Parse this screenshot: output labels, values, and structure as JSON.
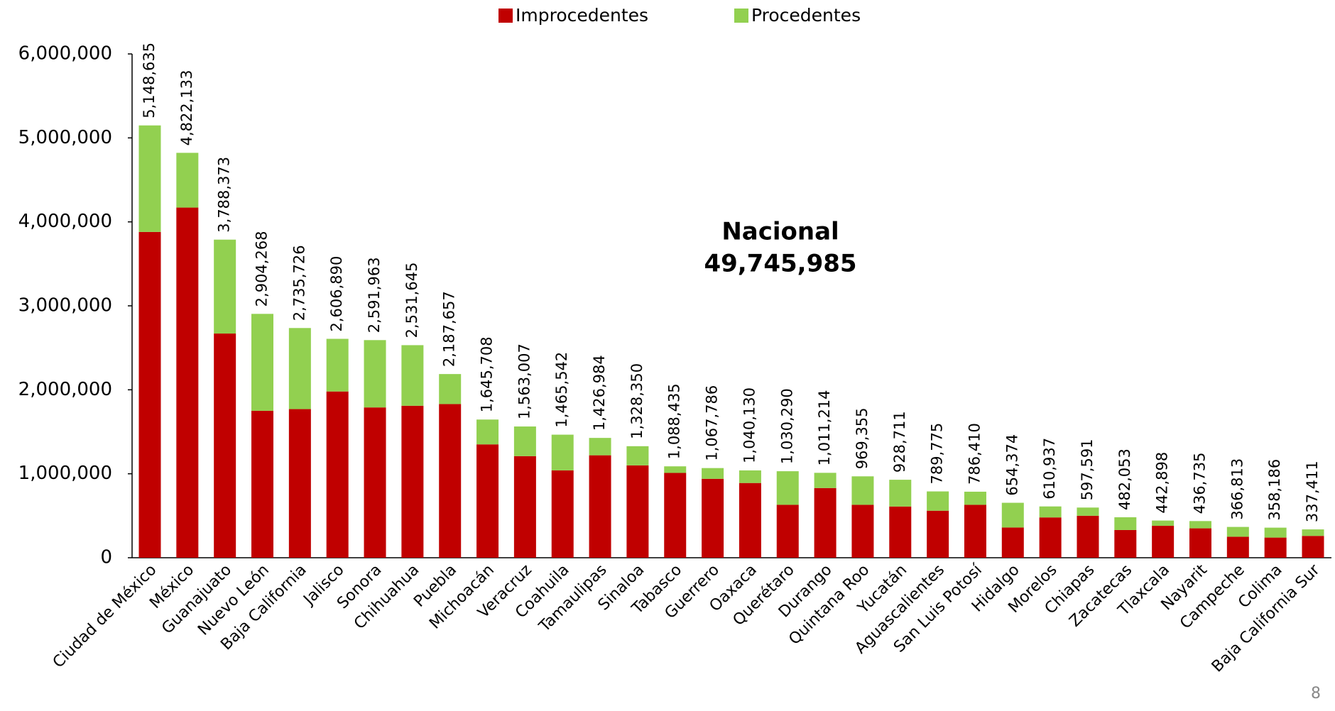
{
  "chart_data": {
    "type": "stacked_bar",
    "annotation": [
      "Nacional",
      "49,745,985"
    ],
    "page_number": "8",
    "categories": [
      "Ciudad de México",
      "México",
      "Guanajuato",
      "Nuevo León",
      "Baja California",
      "Jalisco",
      "Sonora",
      "Chihuahua",
      "Puebla",
      "Michoacán",
      "Veracruz",
      "Coahuila",
      "Tamaulipas",
      "Sinaloa",
      "Tabasco",
      "Guerrero",
      "Oaxaca",
      "Querétaro",
      "Durango",
      "Quintana Roo",
      "Yucatán",
      "Aguascalientes",
      "San Luis Potosí",
      "Hidalgo",
      "Morelos",
      "Chiapas",
      "Zacatecas",
      "Tlaxcala",
      "Nayarit",
      "Campeche",
      "Colima",
      "Baja California Sur"
    ],
    "series": [
      {
        "name": "Improcedentes",
        "color": "#c00000",
        "values": [
          3880000,
          4170000,
          2670000,
          1750000,
          1770000,
          1980000,
          1790000,
          1810000,
          1830000,
          1350000,
          1210000,
          1040000,
          1220000,
          1100000,
          1010000,
          940000,
          890000,
          630000,
          830000,
          630000,
          610000,
          560000,
          630000,
          360000,
          480000,
          500000,
          330000,
          380000,
          350000,
          250000,
          240000,
          260000
        ]
      },
      {
        "name": "Procedentes",
        "color": "#92d050",
        "values": [
          1268635,
          652133,
          1118373,
          1154268,
          965726,
          626890,
          801963,
          721645,
          357657,
          295708,
          353007,
          425542,
          206984,
          228350,
          78435,
          127786,
          150130,
          400290,
          181214,
          339355,
          318711,
          229775,
          156410,
          294374,
          130937,
          97591,
          152053,
          62898,
          86735,
          116813,
          118186,
          77411
        ]
      }
    ],
    "total_labels": [
      "5,148,635",
      "4,822,133",
      "3,788,373",
      "2,904,268",
      "2,735,726",
      "2,606,890",
      "2,591,963",
      "2,531,645",
      "2,187,657",
      "1,645,708",
      "1,563,007",
      "1,465,542",
      "1,426,984",
      "1,328,350",
      "1,088,435",
      "1,067,786",
      "1,040,130",
      "1,030,290",
      "1,011,214",
      "969,355",
      "928,711",
      "789,775",
      "786,410",
      "654,374",
      "610,937",
      "597,591",
      "482,053",
      "442,898",
      "436,735",
      "366,813",
      "358,186",
      "337,411"
    ],
    "ylim": [
      0,
      6000000
    ],
    "yticks": [
      0,
      {
        "value": 1000000,
        "label": "1,000,000"
      },
      {
        "value": 2000000,
        "label": "2,000,000"
      },
      {
        "value": 3000000,
        "label": "3,000,000"
      },
      {
        "value": 4000000,
        "label": "4,000,000"
      },
      {
        "value": 5000000,
        "label": "5,000,000"
      },
      {
        "value": 6000000,
        "label": "6,000,000"
      }
    ],
    "legend": "top"
  }
}
